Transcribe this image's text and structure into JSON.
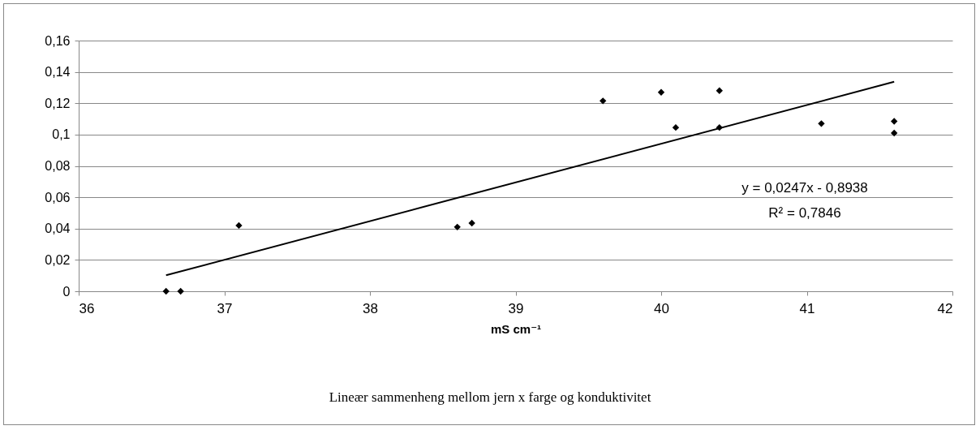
{
  "chart_data": {
    "type": "scatter",
    "xlabel": "mS cm⁻¹",
    "annotations": [
      "y = 0,0247x - 0,8938",
      "R² = 0,7846",
      "Lineær sammenheng mellom jern x farge og konduktivitet"
    ],
    "x": [
      36.6,
      36.7,
      37.1,
      38.6,
      38.7,
      39.6,
      40.0,
      40.1,
      40.4,
      40.4,
      41.1,
      41.6,
      41.6
    ],
    "series": [
      {
        "color": "#000000",
        "marker": "diamond",
        "values": [
          0,
          0,
          0.042,
          0.041,
          0.0435,
          0.1215,
          0.127,
          0.1045,
          0.128,
          0.1045,
          0.107,
          0.1085,
          0.101
        ]
      },
      {
        "type": "line",
        "color": "#000000",
        "x": [
          36.6,
          41.6
        ],
        "values": [
          0.0102,
          0.1337
        ]
      }
    ],
    "xlim": [
      36,
      42
    ],
    "xticks": [
      36,
      37,
      38,
      39,
      40,
      41,
      42
    ],
    "ylim": [
      0,
      0.16
    ],
    "yticks": [
      0,
      {
        "value": 0.02,
        "label": "0,02"
      },
      {
        "value": 0.04,
        "label": "0,04"
      },
      {
        "value": 0.06,
        "label": "0,06"
      },
      {
        "value": 0.08,
        "label": "0,08"
      },
      {
        "value": 0.1,
        "label": "0,1"
      },
      {
        "value": 0.12,
        "label": "0,12"
      },
      {
        "value": 0.14,
        "label": "0,14"
      },
      {
        "value": 0.16,
        "label": "0,16"
      }
    ],
    "grid": "y"
  }
}
